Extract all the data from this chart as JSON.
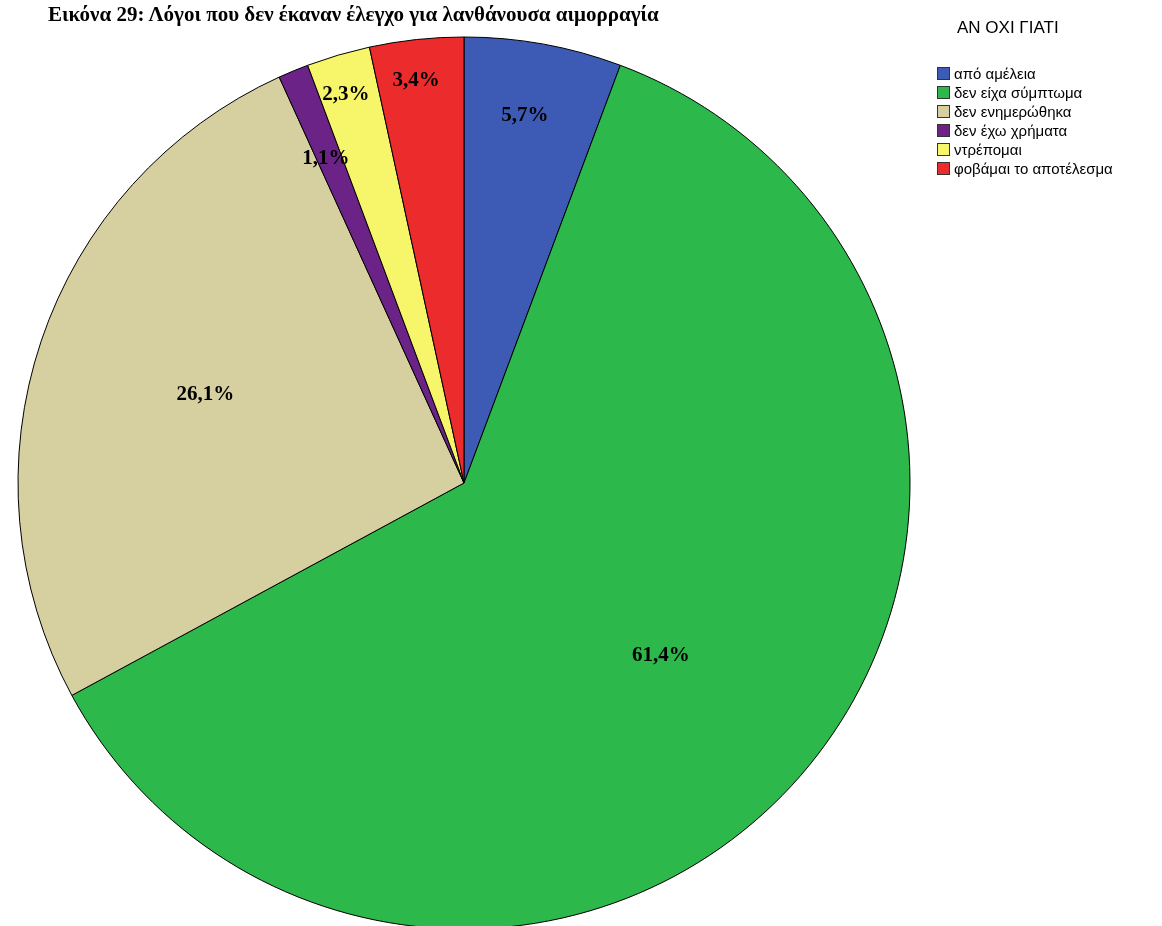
{
  "chart_data": {
    "type": "pie",
    "title": "Εικόνα 29: Λόγοι που δεν έκαναν έλεγχο για λανθάνουσα αιμορραγία",
    "legend_title": "ΑΝ ΟΧΙ ΓΙΑΤΙ",
    "categories": [
      "από αμέλεια",
      "δεν είχα σύμπτωμα",
      "δεν ενημερώθηκα",
      "δεν έχω χρήματα",
      "ντρέπομαι",
      "φοβάμαι το αποτέλεσμα"
    ],
    "values": [
      5.7,
      61.4,
      26.1,
      1.1,
      2.3,
      3.4
    ],
    "colors": [
      "#3d5bb5",
      "#2db84b",
      "#d6cfa0",
      "#6b2387",
      "#f7f56a",
      "#ec2c2c"
    ],
    "value_labels": [
      "5,7%",
      "61,4%",
      "26,1%",
      "1,1%",
      "2,3%",
      "3,4%"
    ],
    "legend": "top right"
  }
}
